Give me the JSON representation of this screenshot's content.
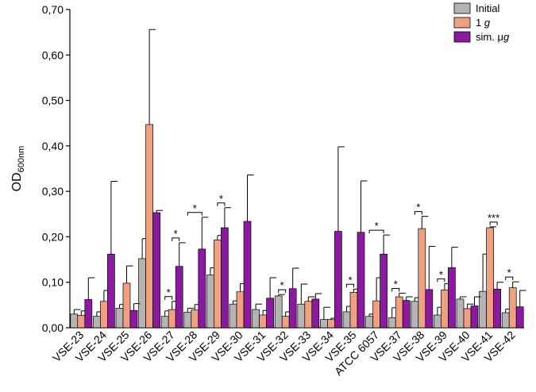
{
  "chart_data": {
    "type": "bar",
    "title": "",
    "xlabel": "",
    "ylabel": "OD",
    "ylabel_subscript": "600nm",
    "ylim": [
      0,
      0.7
    ],
    "yticks": [
      "0,00",
      "0,10",
      "0,20",
      "0,30",
      "0,40",
      "0,50",
      "0,60",
      "0,70"
    ],
    "ytick_values": [
      0,
      0.1,
      0.2,
      0.3,
      0.4,
      0.5,
      0.6,
      0.7
    ],
    "legend_position": "top-right",
    "categories": [
      "VSE-23",
      "VSE-24",
      "VSE-25",
      "VSE-26",
      "VSE-27",
      "VSE-28",
      "VSE-29",
      "VSE-30",
      "VSE-31",
      "VSE-32",
      "VSE-33",
      "VSE-34",
      "VSE-35",
      "ATCC 6057",
      "VSE-37",
      "VSE-38",
      "VSE-39",
      "VSE-40",
      "VSE-41",
      "VSE-42"
    ],
    "series": [
      {
        "name": "Initial",
        "color": "#b4b4b4",
        "values": [
          0.03,
          0.025,
          0.043,
          0.152,
          0.025,
          0.034,
          0.116,
          0.052,
          0.04,
          0.07,
          0.052,
          0.018,
          0.035,
          0.025,
          0.022,
          0.058,
          0.028,
          0.063,
          0.08,
          0.033
        ],
        "errors": [
          0.01,
          0.01,
          0.008,
          0.044,
          0.012,
          0.009,
          0.016,
          0.007,
          0.012,
          0.003,
          0.044,
          0.027,
          0.012,
          0.005,
          0.022,
          0.008,
          0.017,
          0.005,
          0.082,
          0.008
        ]
      },
      {
        "name": "1 g",
        "italic_suffix": "g",
        "color": "#f0a080",
        "values": [
          0.027,
          0.058,
          0.098,
          0.447,
          0.04,
          0.039,
          0.193,
          0.079,
          0.028,
          0.025,
          0.058,
          0.018,
          0.078,
          0.059,
          0.068,
          0.218,
          0.083,
          0.042,
          0.22,
          0.088
        ],
        "errors": [
          0.01,
          0.024,
          0.038,
          0.209,
          0.018,
          0.012,
          0.01,
          0.018,
          0.01,
          0.01,
          0.01,
          0.003,
          0.007,
          0.051,
          0.008,
          0.027,
          0.014,
          0.01,
          0.002,
          0.013
        ],
        "sig": [
          null,
          null,
          null,
          null,
          null,
          null,
          null,
          null,
          null,
          null,
          null,
          null,
          null,
          null,
          null,
          null,
          null,
          null,
          null,
          null
        ]
      },
      {
        "name": "sim. μg",
        "italic_suffix": "g",
        "color": "#8c1aa0",
        "values": [
          0.062,
          0.162,
          0.038,
          0.253,
          0.135,
          0.173,
          0.22,
          0.234,
          0.065,
          0.086,
          0.063,
          0.212,
          0.21,
          0.162,
          0.06,
          0.084,
          0.132,
          0.048,
          0.085,
          0.046
        ],
        "errors": [
          0.048,
          0.16,
          0.015,
          0.005,
          0.052,
          0.07,
          0.044,
          0.102,
          0.045,
          0.045,
          0.012,
          0.186,
          0.113,
          0.042,
          0.008,
          0.095,
          0.045,
          0.02,
          0.015,
          0.036
        ]
      }
    ],
    "legend": [
      "Initial",
      "1 g",
      "sim. μg"
    ],
    "significance": [
      {
        "category": 4,
        "from": 0,
        "to": 1,
        "label": "*"
      },
      {
        "category": 4,
        "from": 1,
        "to": 2,
        "label": "*"
      },
      {
        "category": 5,
        "from": 0,
        "to": 2,
        "label": "*"
      },
      {
        "category": 6,
        "from": 1,
        "to": 2,
        "label": "*"
      },
      {
        "category": 9,
        "from": 0,
        "to": 1,
        "label": "*"
      },
      {
        "category": 12,
        "from": 0,
        "to": 1,
        "label": "*"
      },
      {
        "category": 13,
        "from": 0,
        "to": 2,
        "label": "*"
      },
      {
        "category": 14,
        "from": 0,
        "to": 1,
        "label": "*"
      },
      {
        "category": 15,
        "from": 0,
        "to": 1,
        "label": "*"
      },
      {
        "category": 16,
        "from": 0,
        "to": 1,
        "label": "*"
      },
      {
        "category": 18,
        "from": 1,
        "to": 2,
        "label": "***"
      },
      {
        "category": 19,
        "from": 0,
        "to": 1,
        "label": "*"
      }
    ]
  }
}
